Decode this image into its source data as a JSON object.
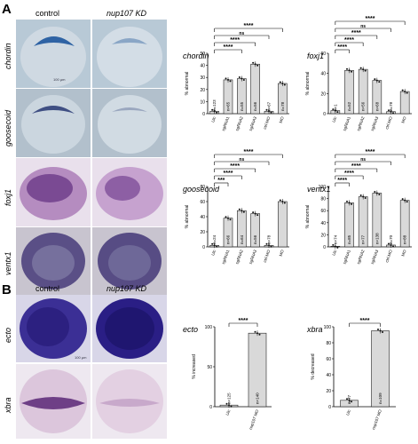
{
  "panelA": {
    "letter": "A",
    "col_control": "control",
    "col_kd": "nup107 KD",
    "rows": [
      "chordin",
      "goosecoid",
      "foxj1",
      "ventx1"
    ],
    "scale_bar": "100 µm"
  },
  "panelB": {
    "letter": "B",
    "col_control": "control",
    "col_kd": "nup107 KD",
    "rows": [
      "ecto",
      "xbra"
    ],
    "scale_bar": "100 µm"
  },
  "colors": {
    "bar_fill": "#d9d9d9",
    "bar_edge": "#222222",
    "dot": "#111111",
    "embryo_purple": "#6c4ca2"
  },
  "chart_data": [
    {
      "type": "bar",
      "title": "chordin",
      "ylabel": "% abnormal",
      "ylim": [
        0,
        50
      ],
      "yticks": [
        0,
        10,
        20,
        30,
        40,
        50
      ],
      "categories": [
        "Uic",
        "sgRNA1",
        "sgRNA2",
        "sgRNA3",
        "ctrl-MO",
        "MO"
      ],
      "values": [
        2,
        28,
        29,
        41,
        2,
        25
      ],
      "n_labels": [
        "n=123",
        "n=65",
        "n=55",
        "n=56",
        "n=67",
        "n=78"
      ],
      "significance": [
        "****",
        "ns",
        "****",
        "****"
      ]
    },
    {
      "type": "bar",
      "title": "foxj1",
      "ylabel": "% abnormal",
      "ylim": [
        0,
        60
      ],
      "yticks": [
        0,
        20,
        40,
        60
      ],
      "categories": [
        "Uic",
        "sgRNA1",
        "sgRNA2",
        "sgRNA3",
        "ctrl-MO",
        "MO"
      ],
      "values": [
        3,
        43,
        44,
        33,
        2,
        22
      ],
      "n_labels": [
        "n=1",
        "n=52",
        "n=56",
        "n=68",
        "n=78",
        ""
      ],
      "significance": [
        "****",
        "ns",
        "****",
        "****",
        "****"
      ]
    },
    {
      "type": "bar",
      "title": "goosecoid",
      "ylabel": "% abnormal",
      "ylim": [
        0,
        80
      ],
      "yticks": [
        0,
        20,
        40,
        60,
        80
      ],
      "categories": [
        "Uic",
        "sgRNA1",
        "sgRNA2",
        "sgRNA3",
        "ctrl-MO",
        "MO"
      ],
      "values": [
        2,
        38,
        48,
        44,
        2,
        60
      ],
      "n_labels": [
        "n=24",
        "n=66",
        "n=64",
        "n=56",
        "n=78",
        ""
      ],
      "significance": [
        "****",
        "ns",
        "****",
        "****",
        "***"
      ]
    },
    {
      "type": "bar",
      "title": "ventx1",
      "ylabel": "% abnormal",
      "ylim": [
        0,
        100
      ],
      "yticks": [
        0,
        20,
        40,
        60,
        80,
        100
      ],
      "categories": [
        "Uic",
        "sgRNA1",
        "sgRNA2",
        "sgRNA3",
        "ctrl-MO",
        "MO"
      ],
      "values": [
        1,
        73,
        83,
        89,
        3,
        77
      ],
      "n_labels": [
        "n=74",
        "n=85",
        "n=77",
        "n=138",
        "n=70",
        "n=88"
      ],
      "significance": [
        "****",
        "ns",
        "****",
        "****",
        "****"
      ]
    },
    {
      "type": "bar",
      "title": "ecto",
      "ylabel": "% increased",
      "ylim": [
        0,
        100
      ],
      "yticks": [
        0,
        50,
        100
      ],
      "categories": [
        "Uic",
        "nup107 MO"
      ],
      "values": [
        2,
        92
      ],
      "n_labels": [
        "n=125",
        "n=140"
      ],
      "significance": [
        "****"
      ]
    },
    {
      "type": "bar",
      "title": "xbra",
      "ylabel": "% decreased",
      "ylim": [
        0,
        100
      ],
      "yticks": [
        0,
        20,
        40,
        60,
        80,
        100
      ],
      "categories": [
        "Uic",
        "nup107 MO"
      ],
      "values": [
        8,
        95
      ],
      "n_labels": [
        "n=77",
        "n=109"
      ],
      "significance": [
        "****"
      ]
    }
  ]
}
